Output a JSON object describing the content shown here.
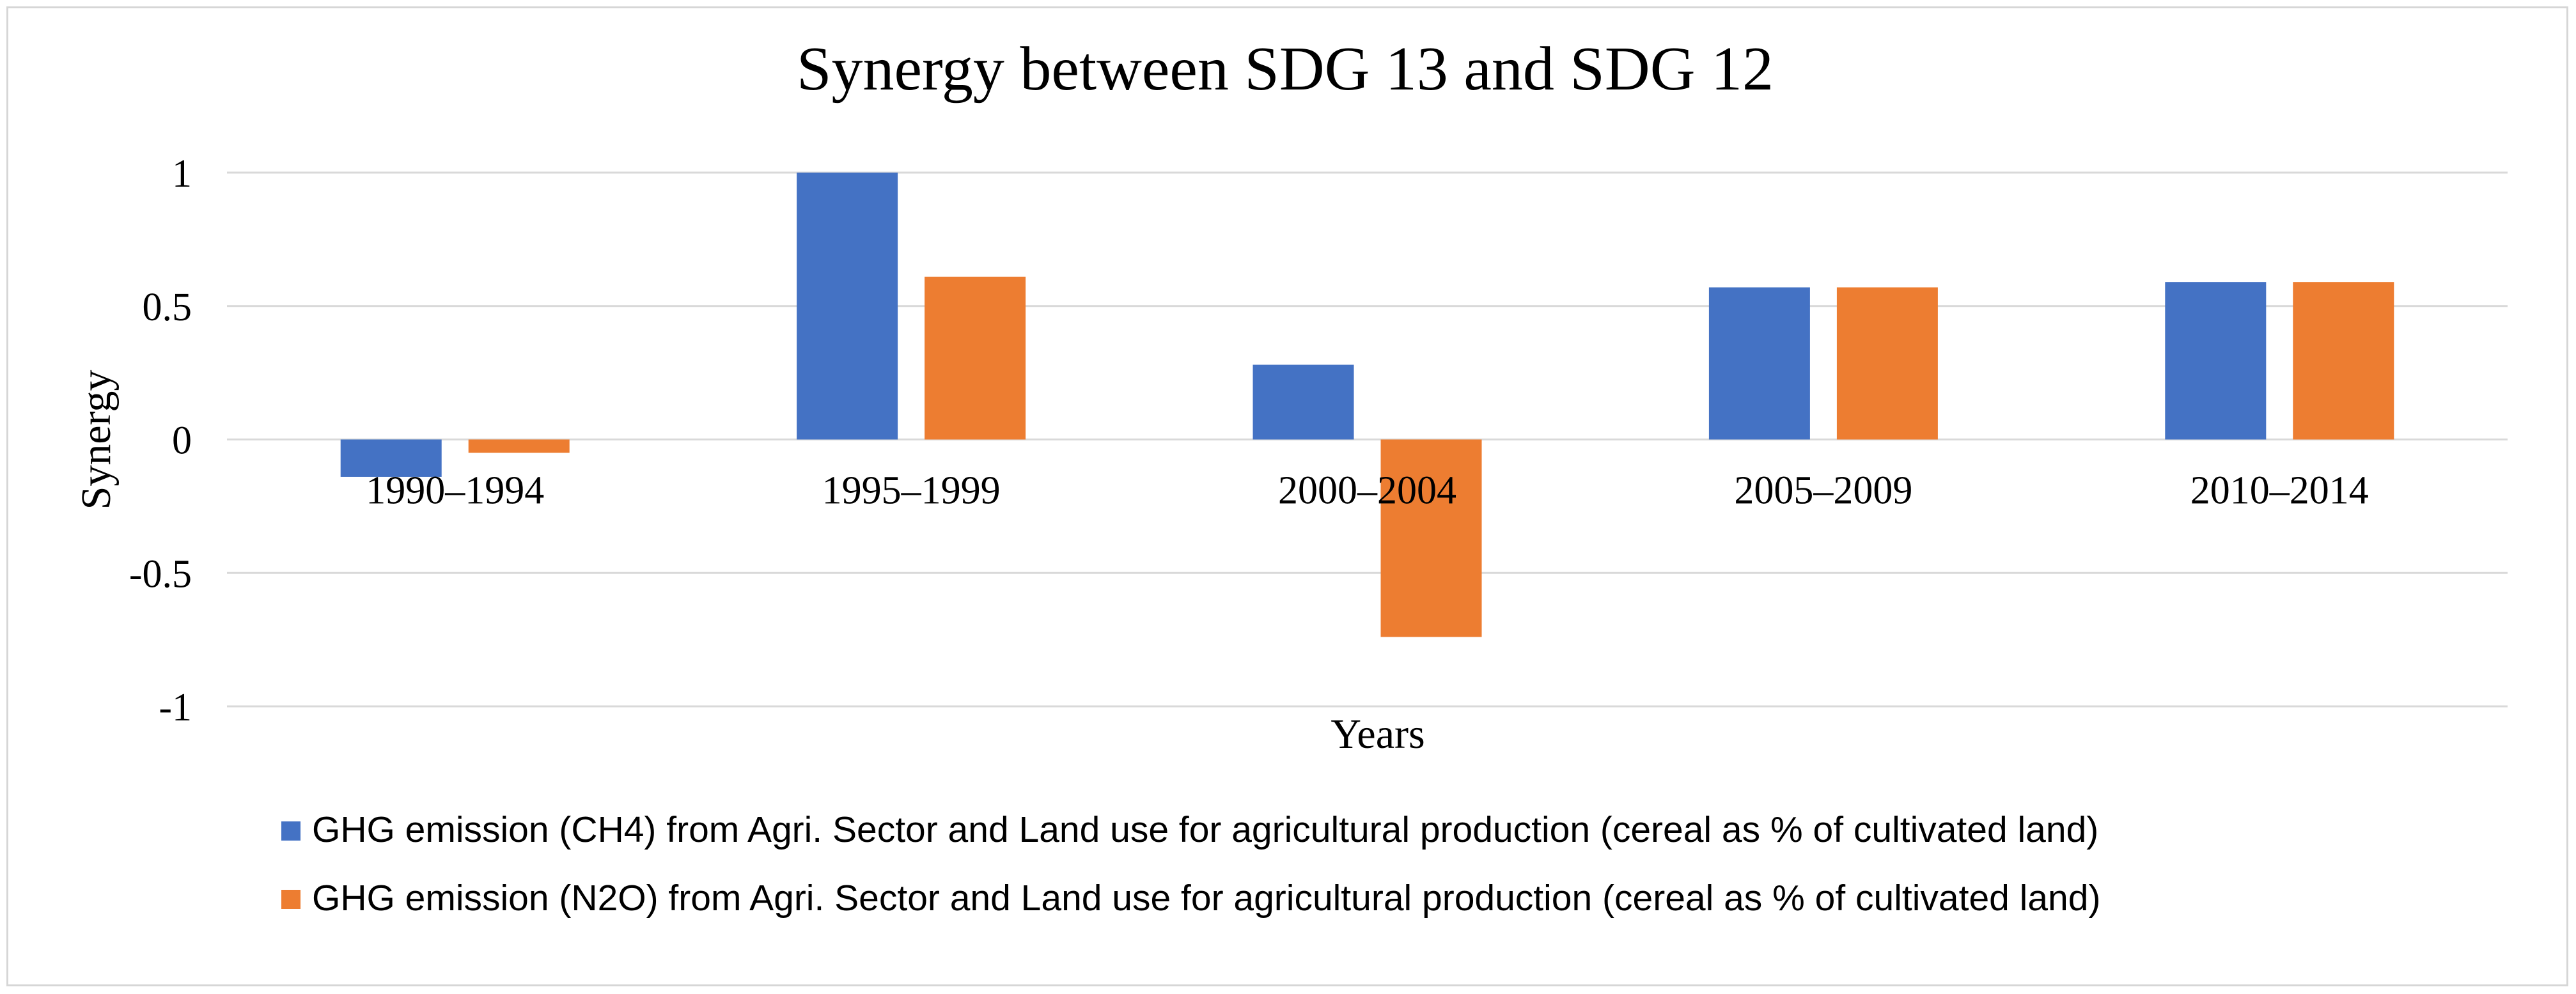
{
  "chart_data": {
    "type": "bar",
    "title": "Synergy between SDG 13 and SDG 12",
    "xlabel": "Years",
    "ylabel": "Synergy",
    "categories": [
      "1990–1994",
      "1995–1999",
      "2000–2004",
      "2005–2009",
      "2010–2014"
    ],
    "ylim": [
      -1,
      1
    ],
    "yticks": [
      1,
      0.5,
      0,
      -0.5,
      -1
    ],
    "ytick_labels": [
      "1",
      "0.5",
      "0",
      "-0.5",
      "-1"
    ],
    "grid": true,
    "legend_position": "bottom",
    "series": [
      {
        "name": "GHG emission (CH4) from Agri. Sector and Land use for agricultural production (cereal as % of cultivated land)",
        "color": "#4472c4",
        "values": [
          -0.14,
          1.0,
          0.28,
          0.57,
          0.59
        ]
      },
      {
        "name": "GHG emission (N2O) from Agri. Sector and Land use for agricultural production (cereal as % of cultivated land)",
        "color": "#ed7d31",
        "values": [
          -0.05,
          0.61,
          -0.74,
          0.57,
          0.59
        ]
      }
    ],
    "gridline_color": "#d9d9d9"
  }
}
